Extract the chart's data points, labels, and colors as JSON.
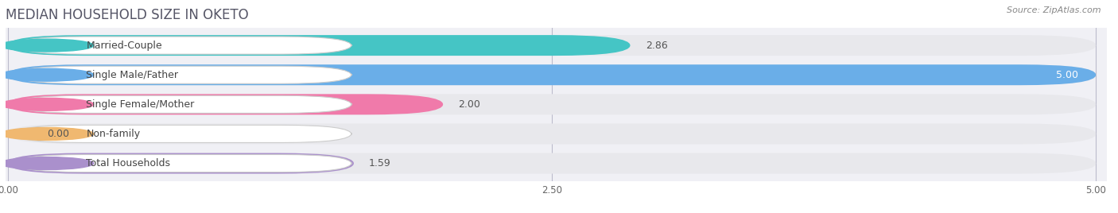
{
  "title": "MEDIAN HOUSEHOLD SIZE IN OKETO",
  "source": "Source: ZipAtlas.com",
  "categories": [
    "Married-Couple",
    "Single Male/Father",
    "Single Female/Mother",
    "Non-family",
    "Total Households"
  ],
  "values": [
    2.86,
    5.0,
    2.0,
    0.0,
    1.59
  ],
  "bar_colors": [
    "#45c5c5",
    "#6aaee8",
    "#f07aaa",
    "#f0b870",
    "#aa90cc"
  ],
  "bar_bg_color": "#e8e8ec",
  "xlim": [
    0,
    5.0
  ],
  "xticks": [
    0.0,
    2.5,
    5.0
  ],
  "xtick_labels": [
    "0.00",
    "2.50",
    "5.00"
  ],
  "value_label_inside": [
    false,
    true,
    false,
    false,
    false
  ],
  "figsize": [
    14.06,
    2.68
  ],
  "dpi": 100,
  "title_fontsize": 12,
  "label_fontsize": 9,
  "value_fontsize": 9,
  "background_color": "#ffffff",
  "plot_bg_color": "#f0f0f5"
}
